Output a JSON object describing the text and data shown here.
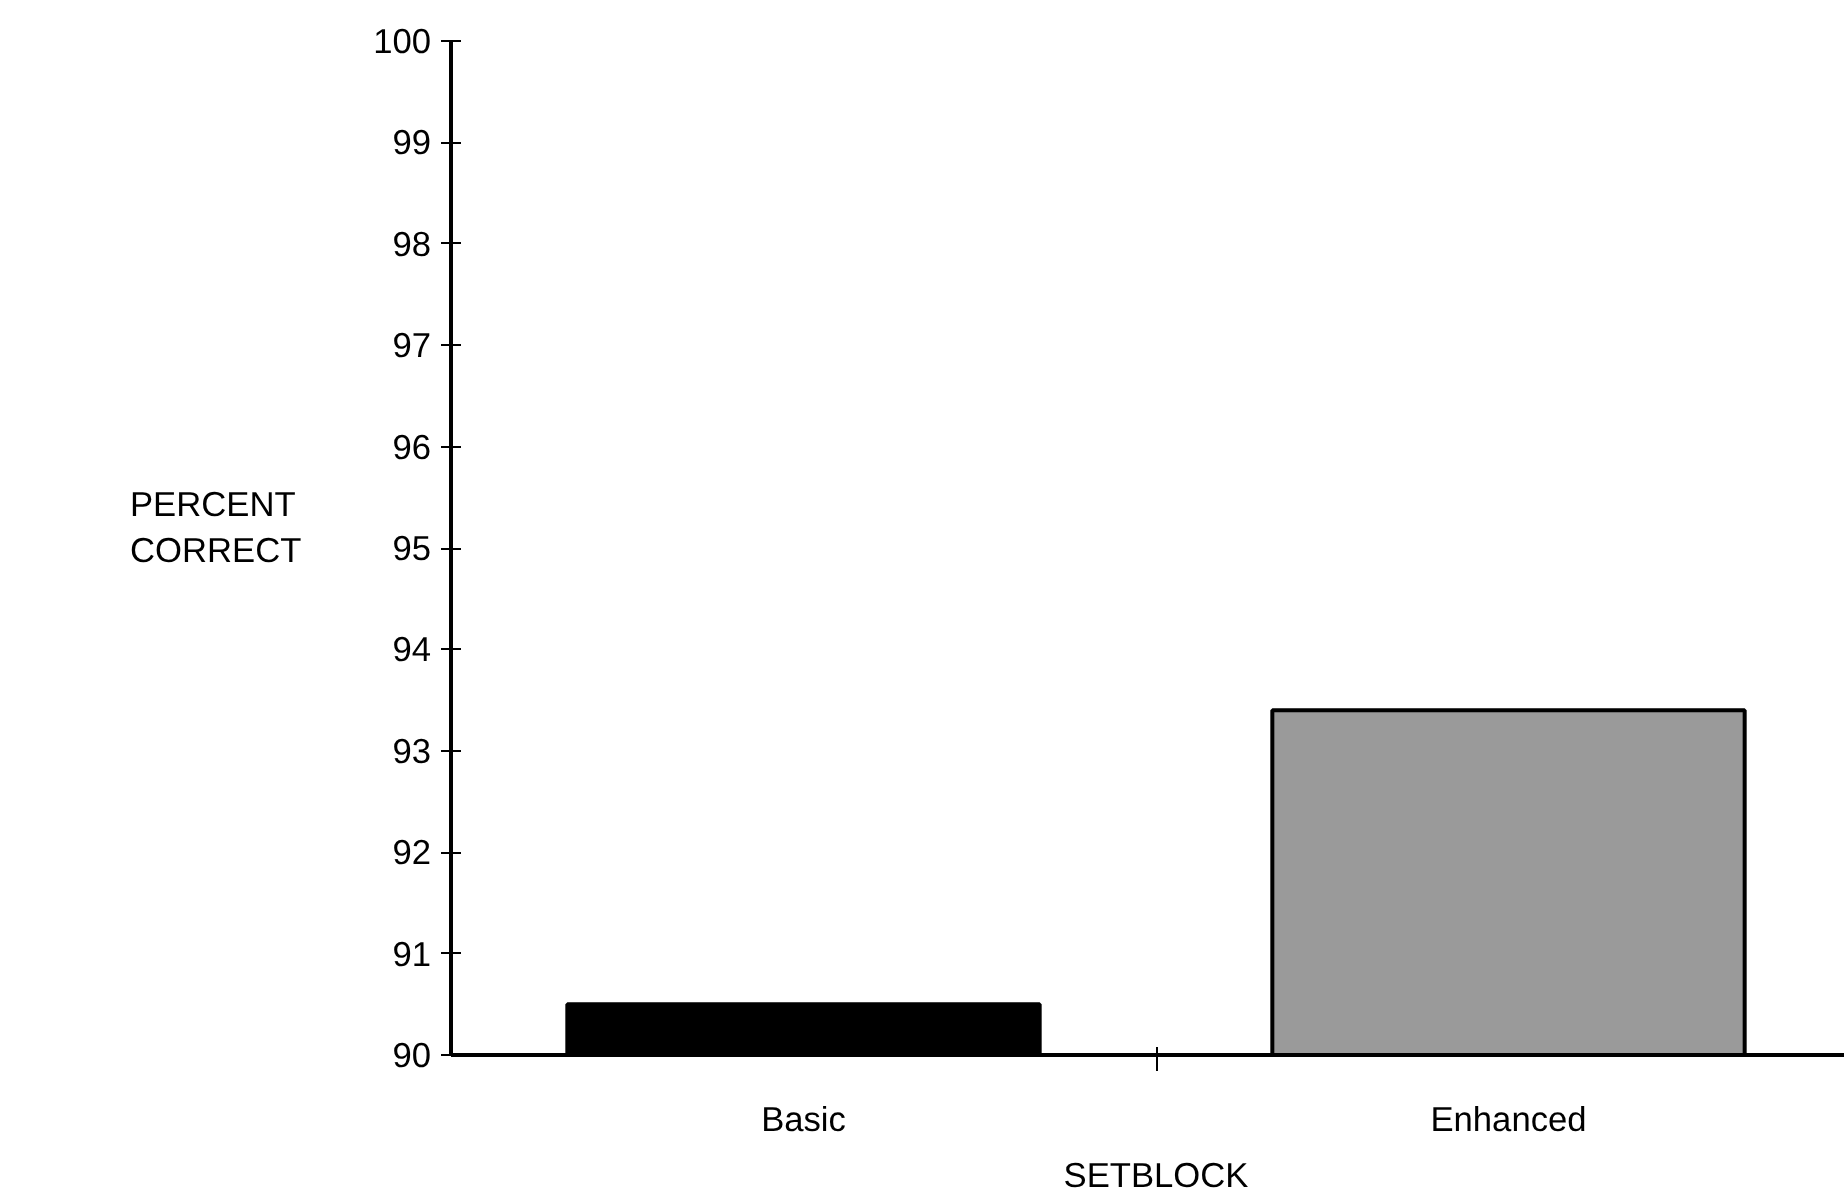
{
  "chart_data": {
    "type": "bar",
    "xlabel": "SETBLOCK",
    "ylabel": "PERCENT\nCORRECT",
    "categories": [
      "Basic",
      "Enhanced"
    ],
    "values": [
      90.5,
      93.4
    ],
    "colors": [
      "#000000",
      "#9a9a9a"
    ],
    "ylim": [
      90,
      100
    ],
    "yticks": [
      90,
      91,
      92,
      93,
      94,
      95,
      96,
      97,
      98,
      99,
      100
    ],
    "grid": false
  }
}
